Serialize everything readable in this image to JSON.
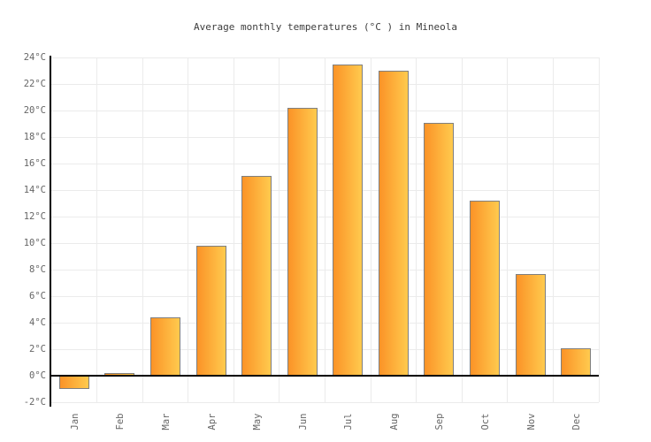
{
  "chart_data": {
    "type": "bar",
    "title": "Average monthly temperatures (°C ) in Mineola",
    "xlabel": "",
    "ylabel": "",
    "categories": [
      "Jan",
      "Feb",
      "Mar",
      "Apr",
      "May",
      "Jun",
      "Jul",
      "Aug",
      "Sep",
      "Oct",
      "Nov",
      "Dec"
    ],
    "values": [
      -1.0,
      0.2,
      4.4,
      9.8,
      15.1,
      20.2,
      23.5,
      23.0,
      19.1,
      13.2,
      7.7,
      2.1
    ],
    "unit": "°C",
    "ylim": [
      -2,
      24
    ],
    "ytick_step": 2,
    "ytick_values": [
      24,
      22,
      20,
      18,
      16,
      14,
      12,
      10,
      8,
      6,
      4,
      2,
      0,
      -2
    ],
    "ytick_labels": [
      "24°C",
      "22°C",
      "20°C",
      "18°C",
      "16°C",
      "14°C",
      "12°C",
      "10°C",
      "8°C",
      "6°C",
      "4°C",
      "2°C",
      "0°C",
      "-2°C"
    ],
    "grid": true,
    "legend": false,
    "baseline_value": 0,
    "colors": {
      "bar_gradient_left": "#fb9327",
      "bar_gradient_right": "#ffca4e",
      "bar_border": "#7f7f7f",
      "gridline": "#ebebeb",
      "axis_line": "#000000",
      "tick_label": "#666666",
      "title": "#3d3d3d",
      "background": "#ffffff"
    }
  }
}
